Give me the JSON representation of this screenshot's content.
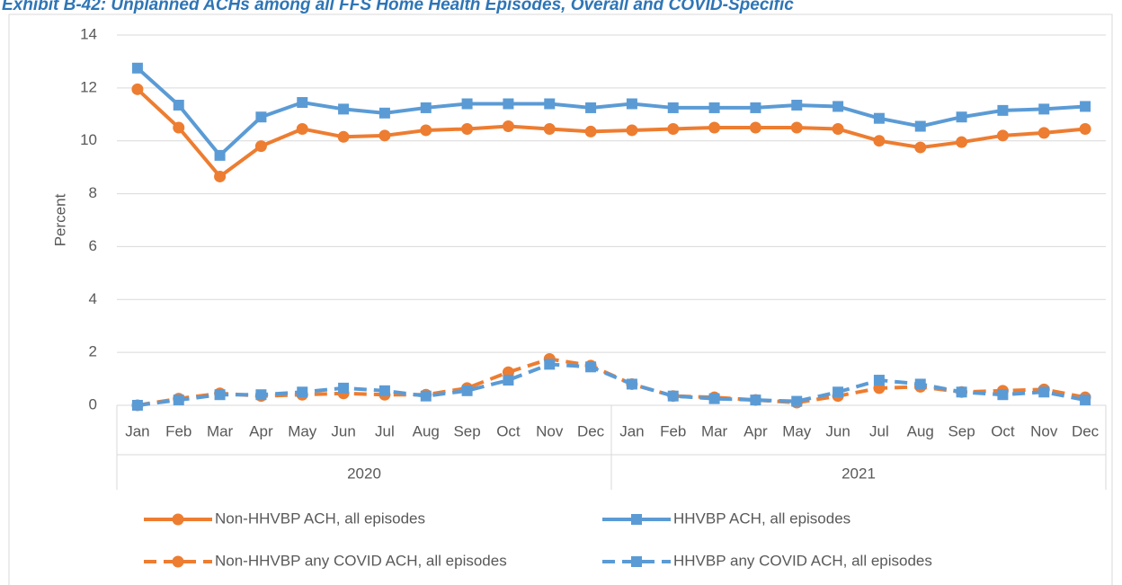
{
  "chart_data": {
    "type": "line",
    "title": "Exhibit B-42: Unplanned ACHs among all FFS Home Health Episodes, Overall and COVID-Specific",
    "y_label": "Percent",
    "categories": [
      "Jan",
      "Feb",
      "Mar",
      "Apr",
      "May",
      "Jun",
      "Jul",
      "Aug",
      "Sep",
      "Oct",
      "Nov",
      "Dec",
      "Jan",
      "Feb",
      "Mar",
      "Apr",
      "May",
      "Jun",
      "Jul",
      "Aug",
      "Sep",
      "Oct",
      "Nov",
      "Dec"
    ],
    "category_groups": [
      "2020",
      "2021"
    ],
    "series": [
      {
        "name": "Non-HHVBP ACH, all episodes",
        "color": "#ed7d31",
        "marker": "circle",
        "dashed": false,
        "values": [
          11.95,
          10.5,
          8.65,
          9.8,
          10.45,
          10.15,
          10.2,
          10.4,
          10.45,
          10.55,
          10.45,
          10.35,
          10.4,
          10.45,
          10.5,
          10.5,
          10.5,
          10.45,
          10.0,
          9.75,
          9.95,
          10.2,
          10.3,
          10.45
        ]
      },
      {
        "name": "HHVBP ACH, all episodes",
        "color": "#5b9bd5",
        "marker": "square",
        "dashed": false,
        "values": [
          12.75,
          11.35,
          9.45,
          10.9,
          11.45,
          11.2,
          11.05,
          11.25,
          11.4,
          11.4,
          11.4,
          11.25,
          11.4,
          11.25,
          11.25,
          11.25,
          11.35,
          11.3,
          10.85,
          10.55,
          10.9,
          11.15,
          11.2,
          11.3
        ]
      },
      {
        "name": "Non-HHVBP any COVID ACH, all episodes",
        "color": "#ed7d31",
        "marker": "circle",
        "dashed": true,
        "values": [
          0,
          0.25,
          0.45,
          0.35,
          0.4,
          0.45,
          0.4,
          0.4,
          0.65,
          1.25,
          1.75,
          1.5,
          0.8,
          0.35,
          0.3,
          0.2,
          0.1,
          0.35,
          0.65,
          0.7,
          0.5,
          0.55,
          0.6,
          0.3
        ]
      },
      {
        "name": "HHVBP any COVID ACH, all episodes",
        "color": "#5b9bd5",
        "marker": "square",
        "dashed": true,
        "values": [
          0,
          0.2,
          0.4,
          0.4,
          0.5,
          0.65,
          0.55,
          0.35,
          0.55,
          0.95,
          1.55,
          1.45,
          0.8,
          0.35,
          0.25,
          0.2,
          0.15,
          0.5,
          0.95,
          0.8,
          0.5,
          0.4,
          0.5,
          0.2
        ]
      }
    ],
    "ylim": [
      0,
      14
    ],
    "yticks": [
      0,
      2,
      4,
      6,
      8,
      10,
      12,
      14
    ],
    "grid": true,
    "legend": "bottom"
  }
}
